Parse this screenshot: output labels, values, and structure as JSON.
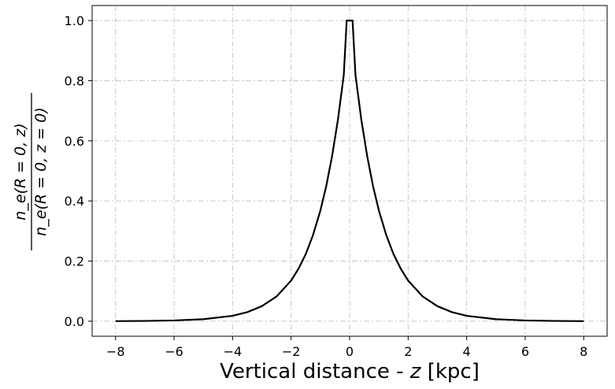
{
  "chart_data": {
    "type": "line",
    "title": "",
    "xlabel": "Vertical distance - z [kpc]",
    "ylabel_numerator": "n_e(R = 0, z)",
    "ylabel_denominator": "n_e(R = 0, z = 0)",
    "xlim": [
      -8.8,
      8.8
    ],
    "ylim": [
      -0.05,
      1.05
    ],
    "xticks": [
      -8,
      -6,
      -4,
      -2,
      0,
      2,
      4,
      6,
      8
    ],
    "xtick_labels": [
      "−8",
      "−6",
      "−4",
      "−2",
      "0",
      "2",
      "4",
      "6",
      "8"
    ],
    "yticks": [
      0.0,
      0.2,
      0.4,
      0.6,
      0.8,
      1.0
    ],
    "ytick_labels": [
      "0.0",
      "0.2",
      "0.4",
      "0.6",
      "0.8",
      "1.0"
    ],
    "grid": true,
    "series": [
      {
        "color": "#000000",
        "x": [
          -8,
          -7,
          -6,
          -5,
          -4,
          -3.5,
          -3,
          -2.5,
          -2,
          -1.75,
          -1.5,
          -1.25,
          -1,
          -0.8,
          -0.6,
          -0.4,
          -0.2,
          -0.1,
          0.1,
          0.2,
          0.4,
          0.6,
          0.8,
          1,
          1.25,
          1.5,
          1.75,
          2,
          2.5,
          3,
          3.5,
          4,
          5,
          6,
          7,
          8
        ],
        "y": [
          0.0003,
          0.0009,
          0.0025,
          0.0067,
          0.018,
          0.03,
          0.05,
          0.082,
          0.135,
          0.174,
          0.223,
          0.287,
          0.368,
          0.449,
          0.549,
          0.67,
          0.819,
          1.0,
          1.0,
          0.819,
          0.67,
          0.549,
          0.449,
          0.368,
          0.287,
          0.223,
          0.174,
          0.135,
          0.082,
          0.05,
          0.03,
          0.018,
          0.0067,
          0.0025,
          0.0009,
          0.0003
        ]
      }
    ]
  }
}
